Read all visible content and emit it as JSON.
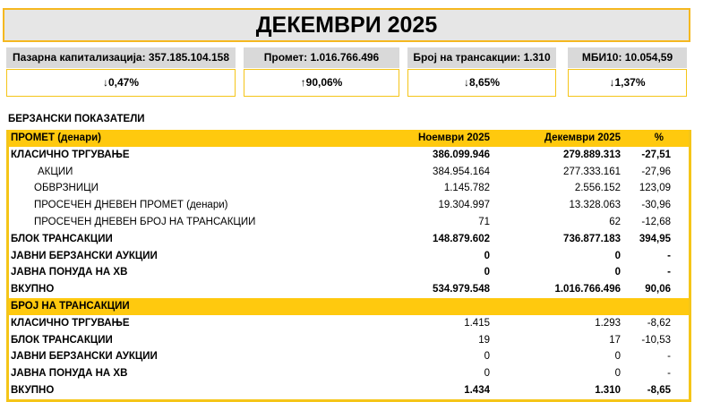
{
  "title": "ДЕКЕМВРИ 2025",
  "stats": [
    {
      "label": "Пазарна капитализација: 357.185.104.158",
      "change": "↓0,47%"
    },
    {
      "label": "Промет: 1.016.766.496",
      "change": "↑90,06%"
    },
    {
      "label": "Број на трансакции: 1.310",
      "change": "↓8,65%"
    },
    {
      "label": "МБИ10: 10.054,59",
      "change": "↓1,37%"
    }
  ],
  "section": "БЕРЗАНСКИ ПОКАЗАТЕЛИ",
  "turnover": {
    "header": [
      "ПРОМЕТ (денари)",
      "Ноември 2025",
      "Декември 2025",
      "%"
    ],
    "rows": [
      [
        "КЛАСИЧНО ТРГУВАЊЕ",
        "386.099.946",
        "279.889.313",
        "-27,51"
      ],
      [
        "АКЦИИ",
        "384.954.164",
        "277.333.161",
        "-27,96"
      ],
      [
        "ОБВРЗНИЦИ",
        "1.145.782",
        "2.556.152",
        "123,09"
      ],
      [
        "ПРОСЕЧЕН ДНЕВЕН ПРОМЕТ (денари)",
        "19.304.997",
        "13.328.063",
        "-30,96"
      ],
      [
        "ПРОСЕЧЕН ДНЕВЕН БРОЈ НА ТРАНСАКЦИИ",
        "71",
        "62",
        "-12,68"
      ],
      [
        "БЛОК ТРАНСАКЦИИ",
        "148.879.602",
        "736.877.183",
        "394,95"
      ],
      [
        "ЈАВНИ БЕРЗАНСКИ АУКЦИИ",
        "0",
        "0",
        "-"
      ],
      [
        "ЈАВНА ПОНУДА НА ХВ",
        "0",
        "0",
        "-"
      ],
      [
        "ВКУПНО",
        "534.979.548",
        "1.016.766.496",
        "90,06"
      ]
    ]
  },
  "transactions": {
    "header": "БРОЈ НА ТРАНСАКЦИИ",
    "rows": [
      [
        "КЛАСИЧНО ТРГУВАЊЕ",
        "1.415",
        "1.293",
        "-8,62"
      ],
      [
        "БЛОК ТРАНСАКЦИИ",
        "19",
        "17",
        "-10,53"
      ],
      [
        "ЈАВНИ БЕРЗАНСКИ АУКЦИИ",
        "0",
        "0",
        "-"
      ],
      [
        "ЈАВНА ПОНУДА НА ХВ",
        "0",
        "0",
        "-"
      ],
      [
        "ВКУПНО",
        "1.434",
        "1.310",
        "-8,65"
      ]
    ]
  }
}
